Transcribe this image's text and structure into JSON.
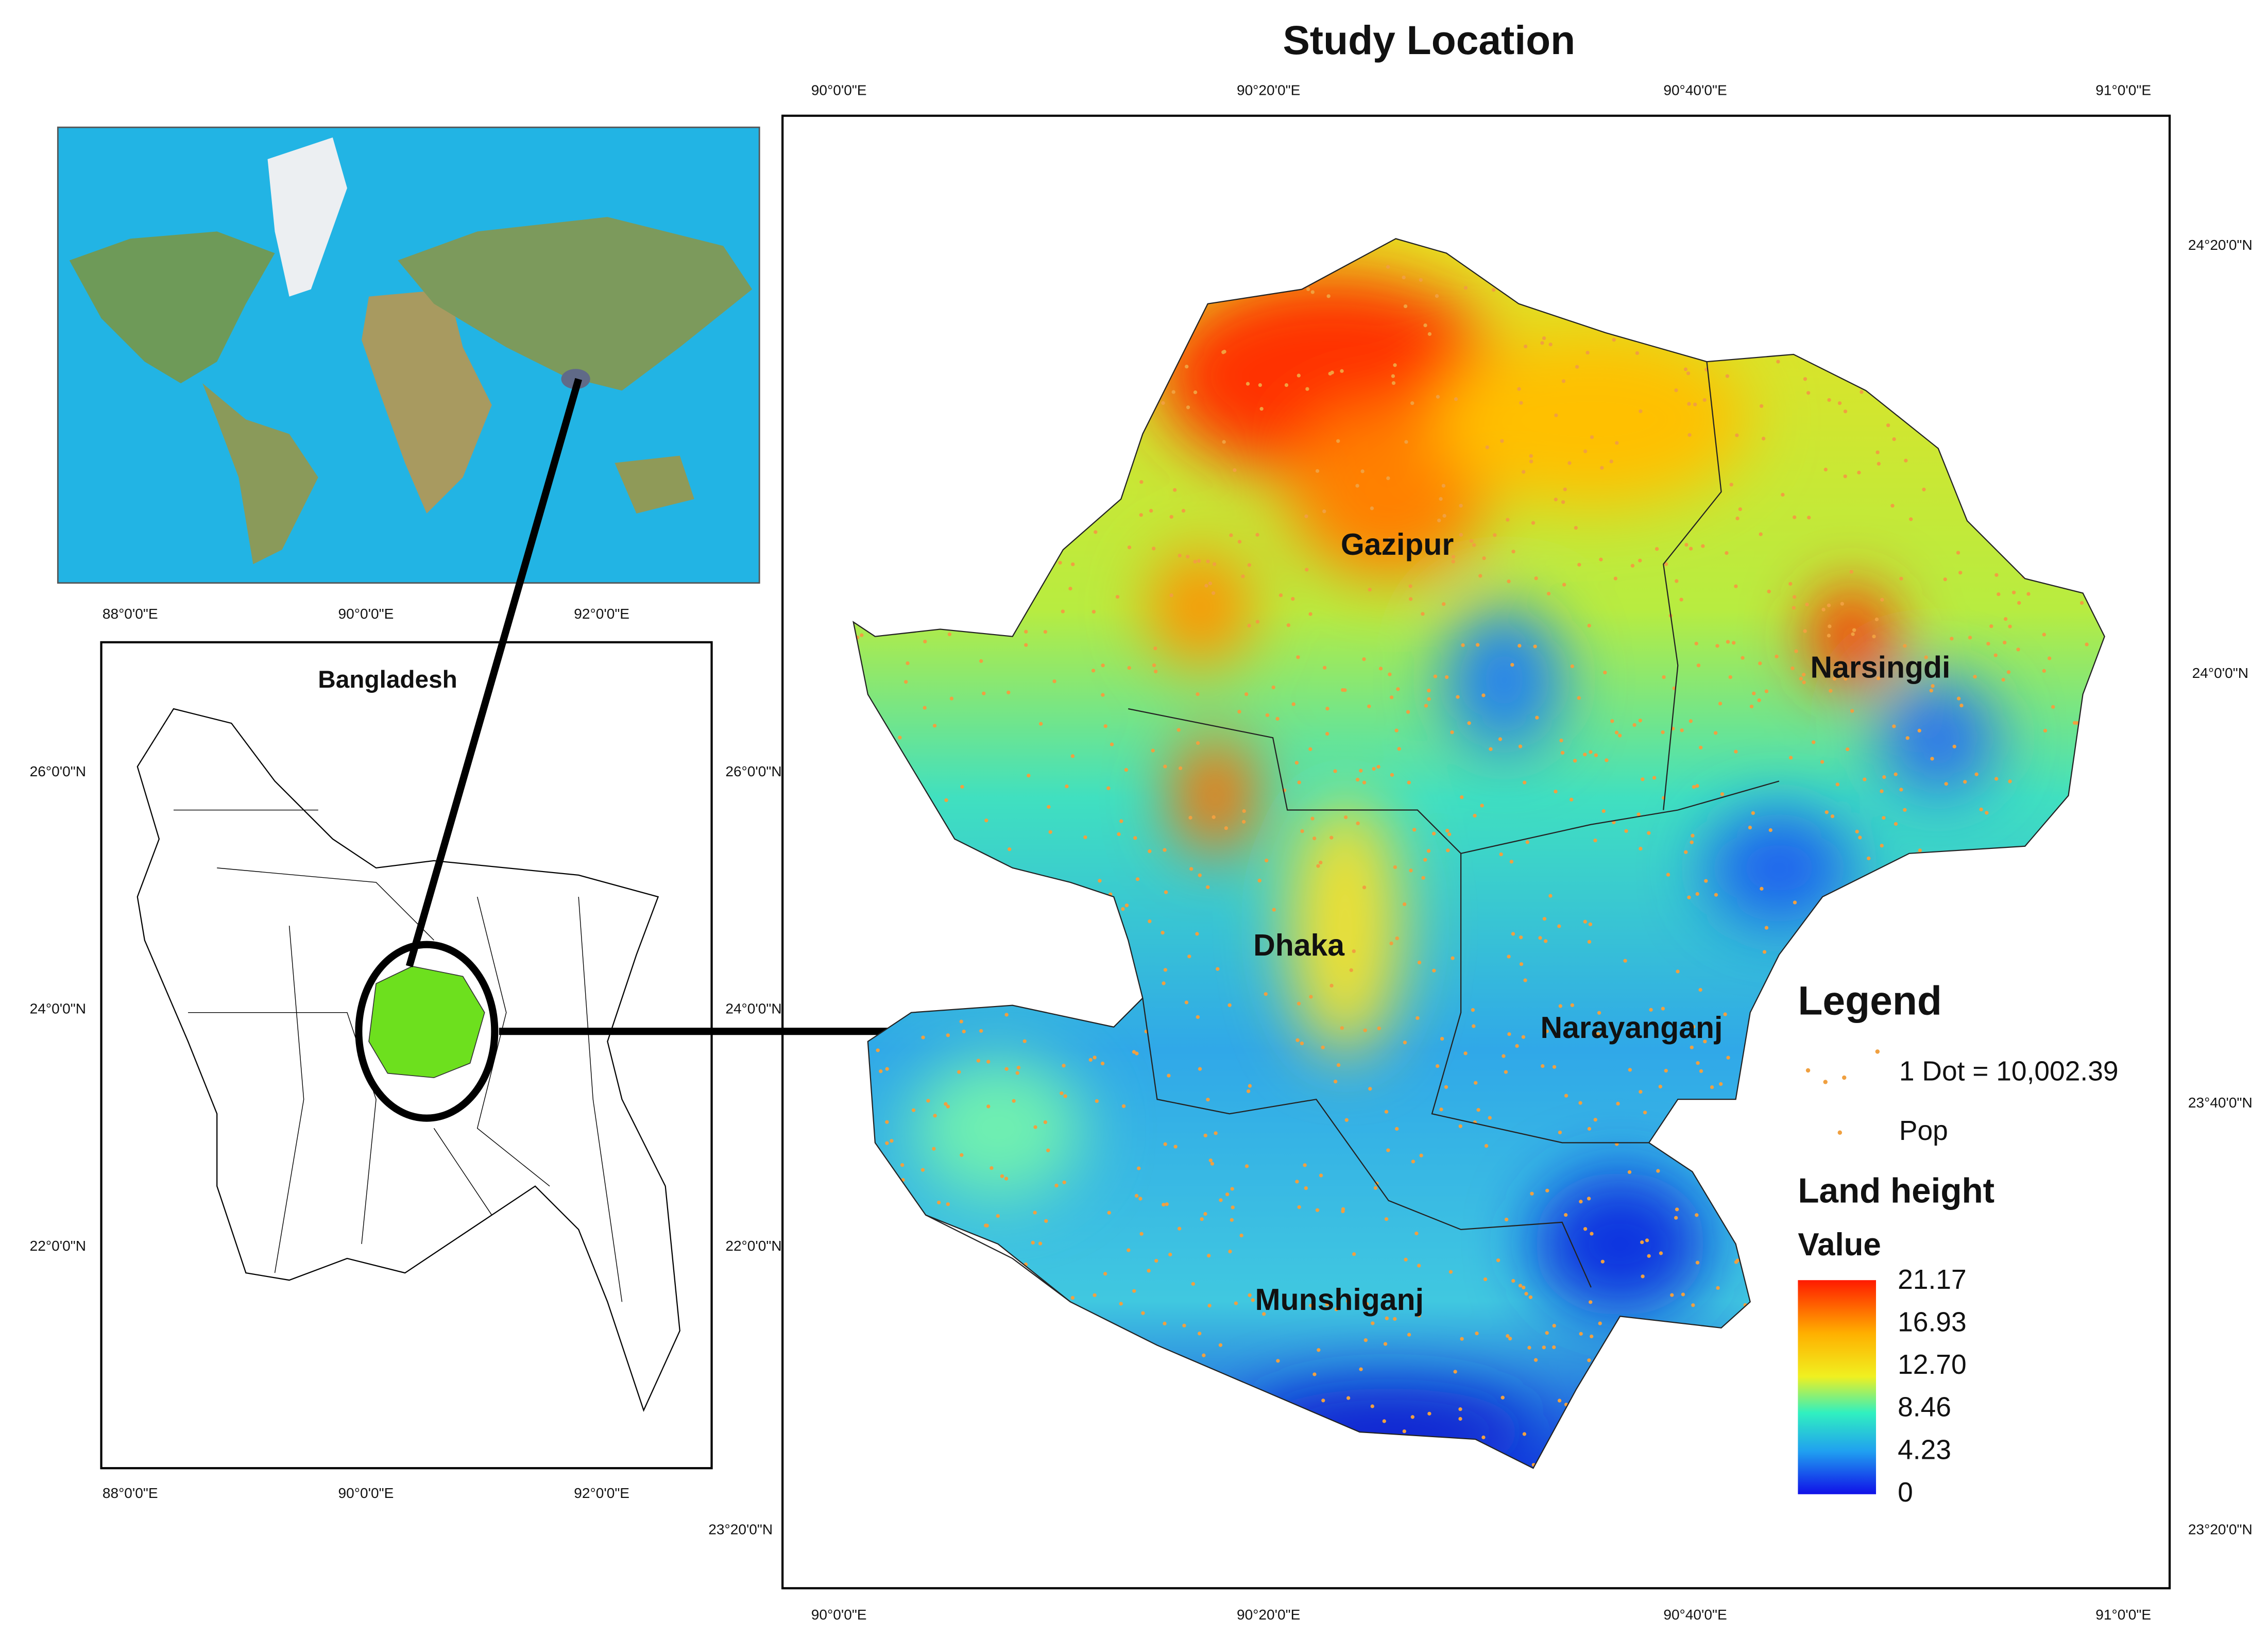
{
  "title": "Study Location",
  "inset": {
    "title": "Bangladesh",
    "x_labels": [
      "88°0'0\"E",
      "90°0'0\"E",
      "92°0'0\"E"
    ],
    "y_labels": [
      "26°0'0\"N",
      "24°0'0\"N",
      "22°0'0\"N"
    ]
  },
  "main_map": {
    "x_labels": [
      "90°0'0\"E",
      "90°20'0\"E",
      "90°40'0\"E",
      "91°0'0\"E"
    ],
    "y_labels": [
      "24°20'0\"N",
      "24°0'0\"N",
      "23°40'0\"N",
      "23°20'0\"N"
    ],
    "districts": [
      "Gazipur",
      "Narsingdi",
      "Dhaka",
      "Narayanganj",
      "Munshiganj"
    ]
  },
  "legend": {
    "title": "Legend",
    "dot_note": "1 Dot = 10,002.39",
    "dot_label": "Pop",
    "raster_title": "Land height",
    "value_title": "Value",
    "value_labels": [
      "21.17",
      "16.93",
      "12.70",
      "8.46",
      "4.23",
      "0"
    ]
  }
}
